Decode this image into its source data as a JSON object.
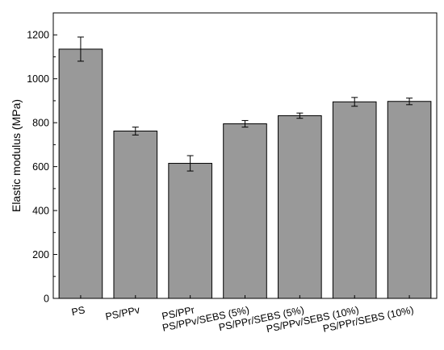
{
  "chart_data": {
    "type": "bar",
    "title": "",
    "xlabel": "",
    "ylabel": "Elastic modulus (MPa)",
    "categories": [
      "PS",
      "PS/PPv",
      "PS/PPr",
      "PS/PPv/SEBS (5%)",
      "PS/PPr/SEBS (5%)",
      "PS/PPv/SEBS (10%)",
      "PS/PPr/SEBS (10%)"
    ],
    "values": [
      1135,
      762,
      615,
      795,
      832,
      895,
      897
    ],
    "errors": [
      55,
      18,
      35,
      15,
      12,
      20,
      15
    ],
    "ylim": [
      0,
      1300
    ],
    "yticks": [
      0,
      200,
      400,
      600,
      800,
      1000,
      1200
    ],
    "bar_color": "#999999",
    "grid": false,
    "legend": "none"
  }
}
